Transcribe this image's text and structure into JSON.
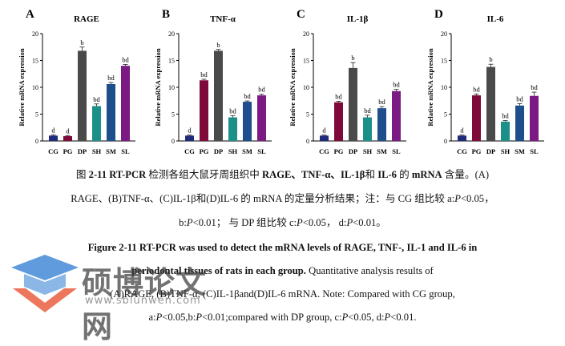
{
  "chart_data": [
    {
      "type": "bar",
      "panel": "A",
      "title": "RAGE",
      "ylabel": "Relative mRNA expression",
      "ylim": [
        0,
        20
      ],
      "yticks": [
        0,
        5,
        10,
        15,
        20
      ],
      "categories": [
        "CG",
        "PG",
        "DP",
        "SH",
        "SM",
        "SL"
      ],
      "values": [
        1.0,
        0.9,
        16.8,
        6.5,
        10.6,
        14.0
      ],
      "errors": [
        0.15,
        0.1,
        0.7,
        0.4,
        0.3,
        0.25
      ],
      "labels": [
        "d",
        "d",
        "b",
        "bd",
        "bd",
        "bd"
      ],
      "colors": [
        "#1f2a7a",
        "#7e0a3a",
        "#4a4a4a",
        "#1d8f89",
        "#1f4e8c",
        "#7b1a82"
      ]
    },
    {
      "type": "bar",
      "panel": "B",
      "title": "TNF-α",
      "ylabel": "Relative mRNA expression",
      "ylim": [
        0,
        20
      ],
      "yticks": [
        0,
        5,
        10,
        15,
        20
      ],
      "categories": [
        "CG",
        "PG",
        "DP",
        "SH",
        "SM",
        "SL"
      ],
      "values": [
        1.0,
        11.3,
        16.8,
        4.4,
        7.3,
        8.5
      ],
      "errors": [
        0.1,
        0.2,
        0.25,
        0.3,
        0.15,
        0.2
      ],
      "labels": [
        "d",
        "bd",
        "b",
        "bd",
        "bd",
        "bd"
      ],
      "colors": [
        "#1f2a7a",
        "#7e0a3a",
        "#4a4a4a",
        "#1d8f89",
        "#1f4e8c",
        "#7b1a82"
      ]
    },
    {
      "type": "bar",
      "panel": "C",
      "title": "IL-1β",
      "ylabel": "Relative mRNA expression",
      "ylim": [
        0,
        20
      ],
      "yticks": [
        0,
        5,
        10,
        15,
        20
      ],
      "categories": [
        "CG",
        "PG",
        "DP",
        "SH",
        "SM",
        "SL"
      ],
      "values": [
        1.0,
        7.2,
        13.6,
        4.4,
        6.1,
        9.3
      ],
      "errors": [
        0.1,
        0.2,
        1.0,
        0.4,
        0.3,
        0.3
      ],
      "labels": [
        "d",
        "bd",
        "b",
        "bd",
        "bd",
        "bd"
      ],
      "colors": [
        "#1f2a7a",
        "#7e0a3a",
        "#4a4a4a",
        "#1d8f89",
        "#1f4e8c",
        "#7b1a82"
      ]
    },
    {
      "type": "bar",
      "panel": "D",
      "title": "IL-6",
      "ylabel": "Relative mRNA expression",
      "ylim": [
        0,
        20
      ],
      "yticks": [
        0,
        5,
        10,
        15,
        20
      ],
      "categories": [
        "CG",
        "PG",
        "DP",
        "SH",
        "SM",
        "SL"
      ],
      "values": [
        1.0,
        8.5,
        13.8,
        3.6,
        6.6,
        8.4
      ],
      "errors": [
        0.1,
        0.25,
        0.5,
        0.2,
        0.35,
        0.7
      ],
      "labels": [
        "d",
        "bd",
        "b",
        "bd",
        "bd",
        "bd"
      ],
      "colors": [
        "#1f2a7a",
        "#7e0a3a",
        "#4a4a4a",
        "#1d8f89",
        "#1f4e8c",
        "#7b1a82"
      ]
    }
  ],
  "caption": {
    "cn_fig": "图",
    "cn_bold": "2-11 RT-PCR",
    "cn_1": " 检测各组大鼠牙周组织中 ",
    "cn_b2": "RAGE、TNF-α、IL-1β",
    "cn_2": "和 ",
    "cn_b3": "IL-6",
    "cn_3": " 的 ",
    "cn_b4": "mRNA",
    "cn_4": " 含量。(A)",
    "cn_line2": "RAGE、(B)TNF-α、(C)IL-1β和(D)IL-6 的 mRNA 的定量分析结果；注：与 CG 组比较 a:",
    "cn_line2_p": "P",
    "cn_line2_end": "<0.05，",
    "cn_line3_a": "b:",
    "cn_line3_p1": "P",
    "cn_line3_b": "<0.01； 与 DP 组比较 c:",
    "cn_line3_p2": "P",
    "cn_line3_c": "<0.05， d:",
    "cn_line3_p3": "P",
    "cn_line3_d": "<0.01。",
    "en_line1": "Figure 2-11 RT-PCR was used to detect the mRNA levels of RAGE, TNF-, IL-1 and IL-6 in",
    "en_line2_bold": "periodontal tissues of rats in each group.",
    "en_line2": " Quantitative analysis results of",
    "en_line3": "(A)RAGE, (B)TNF-α, (C)IL-1βand(D)IL-6 mRNA. Note: Compared with CG group,",
    "en_line4_a": "a:",
    "en_line4_p1": "P",
    "en_line4_b": "<0.05,b:",
    "en_line4_p2": "P",
    "en_line4_c": "<0.01;compared with DP group, c:",
    "en_line4_p3": "P",
    "en_line4_d": "<0.05, d:",
    "en_line4_p4": "P",
    "en_line4_e": "<0.01."
  },
  "watermark": {
    "text": "硕博论文网",
    "url": "www.sblunwen.com",
    "colors": [
      "#2b7bd1",
      "#e8512e"
    ]
  }
}
